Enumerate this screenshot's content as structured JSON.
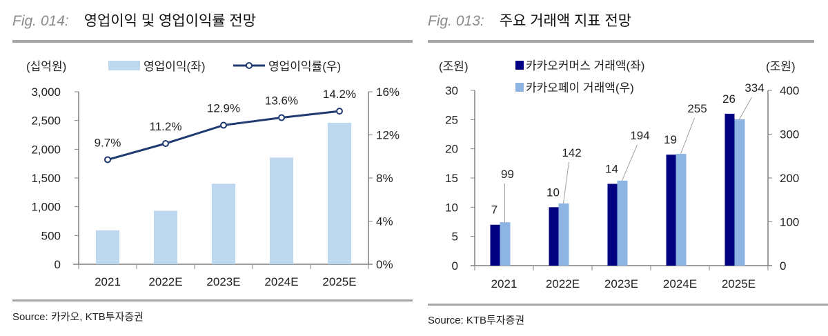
{
  "left": {
    "fig_label": "Fig. 014:",
    "title": "영업이익 및 영업이익률 전망",
    "source": "Source:  카카오, KTB투자증권"
  },
  "right": {
    "fig_label": "Fig. 013:",
    "title": "주요 거래액 지표 전망",
    "source": "Source: KTB투자증권"
  },
  "chart_data": [
    {
      "type": "bar+line",
      "categories": [
        "2021",
        "2022E",
        "2023E",
        "2024E",
        "2025E"
      ],
      "ylabel_left": "(십억원)",
      "ylim_left": [
        0,
        3000
      ],
      "yticks_left": [
        "0",
        "500",
        "1,000",
        "1,500",
        "2,000",
        "2,500",
        "3,000"
      ],
      "ylim_right": [
        0,
        16
      ],
      "yticks_right": [
        "0%",
        "4%",
        "8%",
        "12%",
        "16%"
      ],
      "grid": false,
      "legend": "top",
      "series": [
        {
          "name": "영업이익(좌)",
          "type": "bar",
          "axis": "left",
          "color": "#bdd7ee",
          "values": [
            590,
            930,
            1400,
            1855,
            2460
          ]
        },
        {
          "name": "영업이익률(우)",
          "type": "line",
          "axis": "right",
          "color": "#1f3a70",
          "values": [
            9.7,
            11.2,
            12.9,
            13.6,
            14.2
          ],
          "labels": [
            "9.7%",
            "11.2%",
            "12.9%",
            "13.6%",
            "14.2%"
          ]
        }
      ]
    },
    {
      "type": "bar",
      "categories": [
        "2021",
        "2022E",
        "2023E",
        "2024E",
        "2025E"
      ],
      "ylabel_left": "(조원)",
      "ylabel_right": "(조원)",
      "ylim_left": [
        0,
        30
      ],
      "yticks_left": [
        "0",
        "5",
        "10",
        "15",
        "20",
        "25",
        "30"
      ],
      "ylim_right": [
        0,
        400
      ],
      "yticks_right": [
        "0",
        "100",
        "200",
        "300",
        "400"
      ],
      "grid": false,
      "legend": "top",
      "series": [
        {
          "name": "카카오커머스 거래액(좌)",
          "axis": "left",
          "color": "#000080",
          "values": [
            7,
            10,
            14,
            19,
            26
          ],
          "labels": [
            "7",
            "10",
            "14",
            "19",
            "26"
          ]
        },
        {
          "name": "카카오페이 거래액(우)",
          "axis": "right",
          "color": "#8db4e2",
          "values": [
            99,
            142,
            194,
            255,
            334
          ],
          "labels": [
            "99",
            "142",
            "194",
            "255",
            "334"
          ]
        }
      ]
    }
  ]
}
